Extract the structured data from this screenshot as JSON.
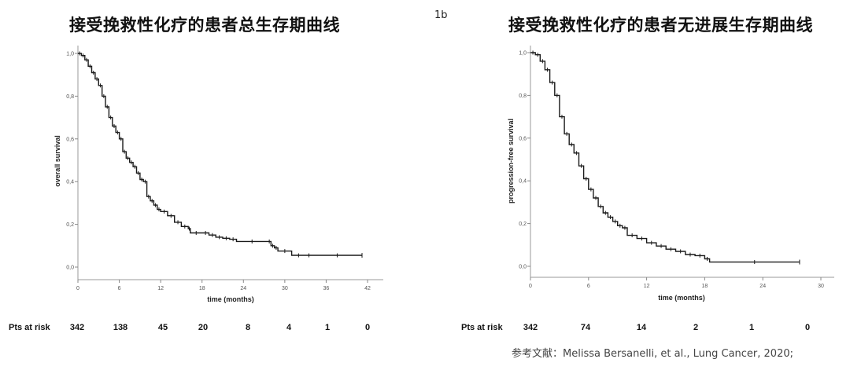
{
  "panel_label": "1b",
  "left": {
    "title": "接受挽救性化疗的患者总生存期曲线",
    "ylabel": "overall survival",
    "xlabel": "time (months)",
    "y_ticks": [
      "0,0",
      "0,2",
      "0,4",
      "0,6",
      "0,8",
      "1,0"
    ],
    "x_ticks": [
      "0",
      "6",
      "12",
      "18",
      "24",
      "30",
      "36",
      "42"
    ],
    "risk_label": "Pts at risk",
    "risk_values": [
      "342",
      "138",
      "45",
      "20",
      "8",
      "4",
      "1",
      "0"
    ]
  },
  "right": {
    "title": "接受挽救性化疗的患者无进展生存期曲线",
    "ylabel": "progression-free survival",
    "xlabel": "time (months)",
    "y_ticks": [
      "0,0",
      "0,2",
      "0,4",
      "0,6",
      "0,8",
      "1,0"
    ],
    "x_ticks": [
      "0",
      "6",
      "12",
      "18",
      "24",
      "30"
    ],
    "risk_label": "Pts at risk",
    "risk_values": [
      "342",
      "74",
      "14",
      "2",
      "1",
      "0"
    ]
  },
  "reference": "参考文献：Melissa Bersanelli, et al., Lung Cancer, 2020;",
  "chart_data": [
    {
      "type": "line",
      "title": "接受挽救性化疗的患者总生存期曲线",
      "xlabel": "time (months)",
      "ylabel": "overall survival",
      "xlim": [
        0,
        44
      ],
      "ylim": [
        0,
        1.0
      ],
      "step": true,
      "series": [
        {
          "name": "overall survival",
          "x": [
            0,
            0.5,
            1,
            1.5,
            2,
            2.5,
            3,
            3.5,
            4,
            4.5,
            5,
            5.5,
            6,
            6.5,
            7,
            7.5,
            8,
            8.5,
            9,
            9.5,
            10,
            10.5,
            11,
            11.5,
            12,
            13,
            14,
            15,
            16,
            16.3,
            18,
            19,
            20,
            21,
            22,
            23,
            27.5,
            28,
            28.5,
            29,
            31,
            33,
            34,
            41.2
          ],
          "y": [
            1.0,
            0.99,
            0.97,
            0.94,
            0.91,
            0.88,
            0.85,
            0.8,
            0.75,
            0.7,
            0.66,
            0.63,
            0.6,
            0.54,
            0.51,
            0.49,
            0.47,
            0.44,
            0.41,
            0.4,
            0.33,
            0.31,
            0.29,
            0.27,
            0.26,
            0.24,
            0.21,
            0.19,
            0.18,
            0.16,
            0.16,
            0.15,
            0.14,
            0.135,
            0.13,
            0.12,
            0.12,
            0.1,
            0.09,
            0.075,
            0.055,
            0.055,
            0.055,
            0.055
          ]
        }
      ],
      "risk_table": {
        "x": [
          0,
          6,
          12,
          18,
          24,
          30,
          36,
          42
        ],
        "n": [
          342,
          138,
          45,
          20,
          8,
          4,
          1,
          0
        ]
      }
    },
    {
      "type": "line",
      "title": "接受挽救性化疗的患者无进展生存期曲线",
      "xlabel": "time (months)",
      "ylabel": "progression-free survival",
      "xlim": [
        0,
        31
      ],
      "ylim": [
        0,
        1.0
      ],
      "step": true,
      "series": [
        {
          "name": "progression-free survival",
          "x": [
            0,
            0.5,
            1,
            1.5,
            2,
            2.5,
            3,
            3.5,
            4,
            4.5,
            5,
            5.5,
            6,
            6.5,
            7,
            7.5,
            8,
            8.5,
            9,
            9.5,
            10,
            11,
            12,
            13,
            14,
            15,
            16,
            17,
            18,
            18.5,
            27.8
          ],
          "y": [
            1.0,
            0.99,
            0.96,
            0.92,
            0.86,
            0.8,
            0.7,
            0.62,
            0.57,
            0.53,
            0.47,
            0.41,
            0.36,
            0.32,
            0.28,
            0.25,
            0.23,
            0.21,
            0.19,
            0.18,
            0.145,
            0.13,
            0.11,
            0.095,
            0.08,
            0.07,
            0.055,
            0.05,
            0.035,
            0.02,
            0.02
          ]
        }
      ],
      "risk_table": {
        "x": [
          0,
          6,
          12,
          18,
          24,
          30
        ],
        "n": [
          342,
          74,
          14,
          2,
          1,
          0
        ]
      }
    }
  ]
}
